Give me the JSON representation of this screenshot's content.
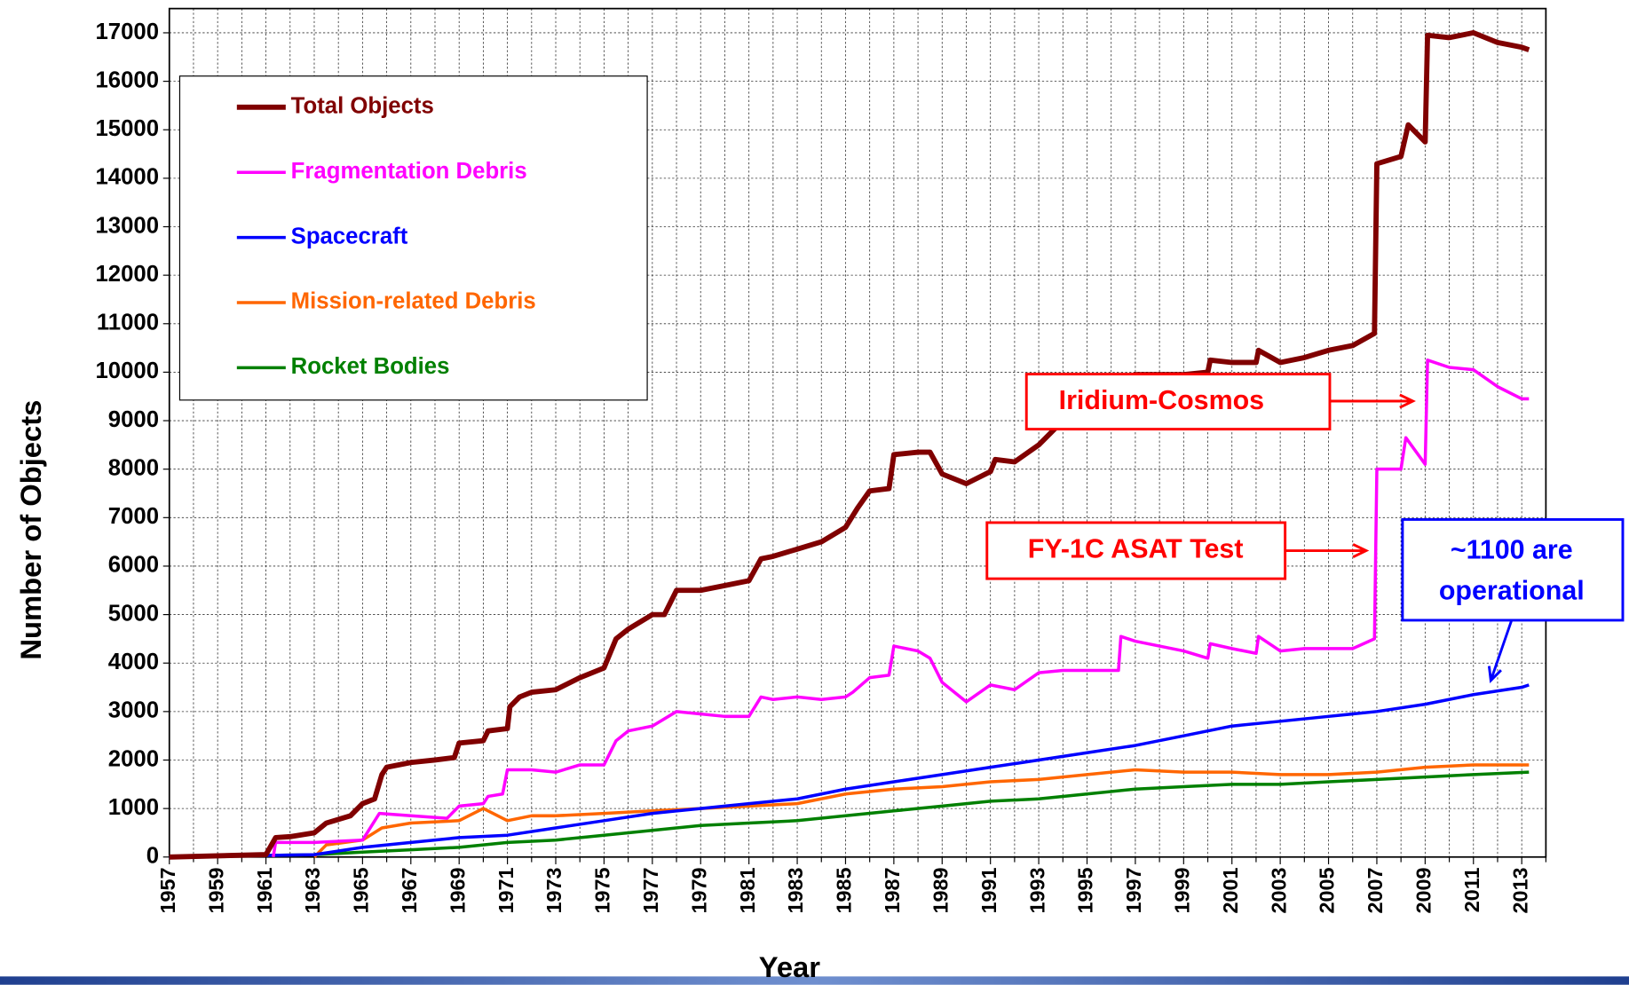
{
  "chart_data": {
    "type": "line",
    "xlabel": "Year",
    "ylabel": "Number of Objects",
    "xlim": [
      1957,
      2014
    ],
    "ylim": [
      0,
      17500
    ],
    "xticks": [
      1957,
      1959,
      1961,
      1963,
      1965,
      1967,
      1969,
      1971,
      1973,
      1975,
      1977,
      1979,
      1981,
      1983,
      1985,
      1987,
      1989,
      1991,
      1993,
      1995,
      1997,
      1999,
      2001,
      2003,
      2005,
      2007,
      2009,
      2011,
      2013
    ],
    "x_minor_ticks": [
      1958,
      1960,
      1962,
      1964,
      1966,
      1968,
      1970,
      1972,
      1974,
      1976,
      1978,
      1980,
      1982,
      1984,
      1986,
      1988,
      1990,
      1992,
      1994,
      1996,
      1998,
      2000,
      2002,
      2004,
      2006,
      2008,
      2010,
      2012,
      2014
    ],
    "yticks": [
      0,
      1000,
      2000,
      3000,
      4000,
      5000,
      6000,
      7000,
      8000,
      9000,
      10000,
      11000,
      12000,
      13000,
      14000,
      15000,
      16000,
      17000
    ],
    "grid": true,
    "legend": "upper left",
    "series": [
      {
        "name": "Total Objects",
        "color": "#800000",
        "width": 5,
        "x": [
          1957,
          1961,
          1961.4,
          1962,
          1963,
          1963.5,
          1964.5,
          1965,
          1965.5,
          1965.8,
          1966,
          1967,
          1968,
          1968.8,
          1969,
          1970,
          1970.2,
          1971,
          1971.1,
          1971.5,
          1972,
          1973,
          1974,
          1975,
          1975.5,
          1976,
          1977,
          1977.5,
          1978,
          1979,
          1980,
          1981,
          1981.5,
          1982,
          1983,
          1984,
          1985,
          1985.5,
          1986,
          1986.8,
          1987,
          1988,
          1988.5,
          1989,
          1990,
          1991,
          1991.2,
          1992,
          1993,
          1994,
          1995,
          1996,
          1997,
          1998,
          1999,
          2000,
          2000.1,
          2001,
          2002,
          2002.1,
          2003,
          2004,
          2005,
          2006,
          2006.9,
          2007,
          2008,
          2008.3,
          2009,
          2009.1,
          2010,
          2011,
          2012,
          2013,
          2013.3
        ],
        "values": [
          0,
          50,
          400,
          420,
          500,
          700,
          850,
          1100,
          1200,
          1700,
          1850,
          1950,
          2000,
          2050,
          2350,
          2400,
          2600,
          2650,
          3100,
          3300,
          3400,
          3450,
          3700,
          3900,
          4500,
          4700,
          5000,
          5000,
          5500,
          5500,
          5600,
          5700,
          6150,
          6200,
          6350,
          6500,
          6800,
          7200,
          7550,
          7600,
          8300,
          8350,
          8350,
          7900,
          7700,
          7950,
          8200,
          8150,
          8500,
          9000,
          9500,
          9800,
          9950,
          9950,
          9950,
          10000,
          10250,
          10200,
          10200,
          10450,
          10200,
          10300,
          10450,
          10550,
          10800,
          14300,
          14450,
          15100,
          14750,
          16950,
          16900,
          17000,
          16800,
          16700,
          16650
        ]
      },
      {
        "name": "Fragmentation Debris",
        "color": "#ff00ff",
        "width": 3,
        "x": [
          1961.3,
          1961.4,
          1963,
          1965,
          1965.7,
          1967,
          1968.5,
          1969,
          1970,
          1970.2,
          1970.8,
          1971,
          1972,
          1973,
          1974,
          1975,
          1975.5,
          1976,
          1977,
          1978,
          1980,
          1981,
          1981.5,
          1982,
          1983,
          1984,
          1985,
          1985.3,
          1986,
          1986.8,
          1987,
          1988,
          1988.5,
          1989,
          1990,
          1991,
          1992,
          1993,
          1994,
          1995,
          1996.3,
          1996.4,
          1997,
          1999,
          2000,
          2000.1,
          2001,
          2002,
          2002.1,
          2003,
          2004,
          2005,
          2006,
          2006.9,
          2007,
          2008,
          2008.2,
          2009,
          2009.1,
          2010,
          2011,
          2012,
          2013,
          2013.3
        ],
        "values": [
          0,
          300,
          300,
          350,
          900,
          850,
          800,
          1050,
          1100,
          1250,
          1300,
          1800,
          1800,
          1750,
          1900,
          1900,
          2400,
          2600,
          2700,
          3000,
          2900,
          2900,
          3300,
          3250,
          3300,
          3250,
          3300,
          3400,
          3700,
          3750,
          4350,
          4250,
          4100,
          3600,
          3200,
          3550,
          3450,
          3800,
          3850,
          3850,
          3850,
          4550,
          4450,
          4250,
          4100,
          4400,
          4300,
          4200,
          4550,
          4250,
          4300,
          4300,
          4300,
          4500,
          8000,
          8000,
          8650,
          8100,
          10250,
          10100,
          10050,
          9700,
          9450,
          9450
        ]
      },
      {
        "name": "Spacecraft",
        "color": "#0000ff",
        "width": 3,
        "x": [
          1957,
          1963,
          1965,
          1967,
          1969,
          1971,
          1973,
          1975,
          1977,
          1979,
          1981,
          1983,
          1985,
          1987,
          1989,
          1991,
          1993,
          1995,
          1997,
          1999,
          2001,
          2003,
          2005,
          2007,
          2009,
          2011,
          2013,
          2013.3
        ],
        "values": [
          0,
          50,
          200,
          300,
          400,
          450,
          600,
          750,
          900,
          1000,
          1100,
          1200,
          1400,
          1550,
          1700,
          1850,
          2000,
          2150,
          2300,
          2500,
          2700,
          2800,
          2900,
          3000,
          3150,
          3350,
          3500,
          3550
        ]
      },
      {
        "name": "Mission-related Debris",
        "color": "#ff6600",
        "width": 3,
        "x": [
          1963,
          1963.5,
          1965,
          1965.8,
          1967,
          1969,
          1970,
          1971,
          1972,
          1973,
          1975,
          1977,
          1979,
          1981,
          1983,
          1985,
          1987,
          1989,
          1991,
          1993,
          1995,
          1997,
          1999,
          2001,
          2003,
          2005,
          2007,
          2009,
          2011,
          2013.3
        ],
        "values": [
          0,
          250,
          350,
          600,
          700,
          750,
          1000,
          750,
          850,
          850,
          900,
          950,
          1000,
          1050,
          1100,
          1300,
          1400,
          1450,
          1550,
          1600,
          1700,
          1800,
          1750,
          1750,
          1700,
          1700,
          1750,
          1850,
          1900,
          1900
        ]
      },
      {
        "name": "Rocket Bodies",
        "color": "#008000",
        "width": 3,
        "x": [
          1957,
          1963,
          1965,
          1967,
          1969,
          1971,
          1973,
          1975,
          1977,
          1979,
          1981,
          1983,
          1985,
          1987,
          1989,
          1991,
          1993,
          1995,
          1997,
          1999,
          2001,
          2003,
          2005,
          2007,
          2009,
          2011,
          2013.3
        ],
        "values": [
          0,
          50,
          100,
          150,
          200,
          300,
          350,
          450,
          550,
          650,
          700,
          750,
          850,
          950,
          1050,
          1150,
          1200,
          1300,
          1400,
          1450,
          1500,
          1500,
          1550,
          1600,
          1650,
          1700,
          1750
        ]
      }
    ],
    "annotations": [
      {
        "text": [
          "Iridium-Cosmos"
        ],
        "color": "#ff0000"
      },
      {
        "text": [
          "FY-1C ASAT Test"
        ],
        "color": "#ff0000"
      },
      {
        "text": [
          "~1100 are",
          "operational"
        ],
        "color": "#0000ff"
      }
    ]
  }
}
